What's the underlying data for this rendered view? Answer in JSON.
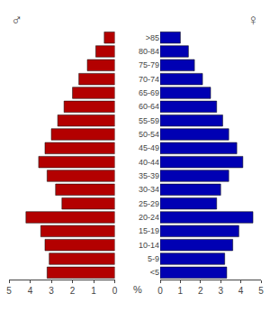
{
  "chart_data": {
    "type": "bar",
    "orientation": "horizontal",
    "categories": [
      ">85",
      "80-84",
      "75-79",
      "70-74",
      "65-69",
      "60-64",
      "55-59",
      "50-54",
      "45-49",
      "40-44",
      "35-39",
      "30-34",
      "25-29",
      "20-24",
      "15-19",
      "10-14",
      "5-9",
      "<5"
    ],
    "series": [
      {
        "name": "♂",
        "color": "#b30000",
        "values": [
          0.5,
          0.9,
          1.3,
          1.7,
          2.0,
          2.4,
          2.7,
          3.0,
          3.3,
          3.6,
          3.2,
          2.8,
          2.5,
          4.2,
          3.5,
          3.3,
          3.1,
          3.2
        ]
      },
      {
        "name": "♀",
        "color": "#0000b3",
        "values": [
          1.0,
          1.4,
          1.7,
          2.1,
          2.5,
          2.8,
          3.1,
          3.4,
          3.8,
          4.1,
          3.4,
          3.0,
          2.8,
          4.6,
          3.9,
          3.6,
          3.2,
          3.3
        ]
      }
    ],
    "xlabel": "%",
    "xlim": [
      0,
      5
    ],
    "xticks": [
      0,
      1,
      2,
      3,
      4,
      5
    ],
    "grid": false
  }
}
